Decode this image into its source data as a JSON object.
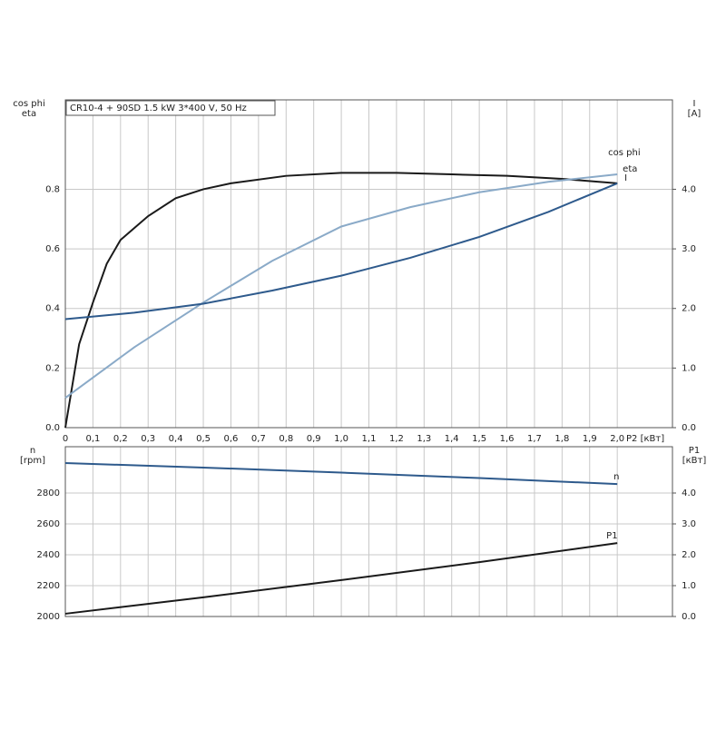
{
  "chart_data": [
    {
      "type": "line",
      "title": "CR10-4 + 90SD   1.5 kW   3*400 V, 50 Hz",
      "ylabel": [
        "cos phi",
        "eta"
      ],
      "y2label": [
        "I",
        "[A]"
      ],
      "xlabel": "P2 [кВт]",
      "xlim": [
        0,
        2.2
      ],
      "ylim": [
        0,
        1.1
      ],
      "y2lim": [
        0,
        5.5
      ],
      "xticks": [
        0,
        {
          "value": 0.1,
          "label": "0,1"
        },
        {
          "value": 0.2,
          "label": "0,2"
        },
        {
          "value": 0.3,
          "label": "0,3"
        },
        {
          "value": 0.4,
          "label": "0,4"
        },
        {
          "value": 0.5,
          "label": "0,5"
        },
        {
          "value": 0.6,
          "label": "0,6"
        },
        {
          "value": 0.7,
          "label": "0,7"
        },
        {
          "value": 0.8,
          "label": "0,8"
        },
        {
          "value": 0.9,
          "label": "0,9"
        },
        {
          "value": 1.0,
          "label": "1,0"
        },
        {
          "value": 1.1,
          "label": "1,1"
        },
        {
          "value": 1.2,
          "label": "1,2"
        },
        {
          "value": 1.3,
          "label": "1,3"
        },
        {
          "value": 1.4,
          "label": "1,4"
        },
        {
          "value": 1.5,
          "label": "1,5"
        },
        {
          "value": 1.6,
          "label": "1,6"
        },
        {
          "value": 1.7,
          "label": "1,7"
        },
        {
          "value": 1.8,
          "label": "1,8"
        },
        {
          "value": 1.9,
          "label": "1,9"
        },
        {
          "value": 2.0,
          "label": "2,0"
        }
      ],
      "yticks": [
        {
          "value": 0,
          "label": "0.0"
        },
        {
          "value": 0.2,
          "label": "0.2"
        },
        {
          "value": 0.4,
          "label": "0.4"
        },
        {
          "value": 0.6,
          "label": "0.6"
        },
        {
          "value": 0.8,
          "label": "0.8"
        }
      ],
      "y2ticks": [
        {
          "value": 0,
          "label": "0.0"
        },
        {
          "value": 1,
          "label": "1.0"
        },
        {
          "value": 2,
          "label": "2.0"
        },
        {
          "value": 3,
          "label": "3.0"
        },
        {
          "value": 4,
          "label": "4.0"
        }
      ],
      "grid": true,
      "series": [
        {
          "name": "eta",
          "color": "#1a1a1a",
          "x": [
            0,
            0.05,
            0.1,
            0.15,
            0.2,
            0.3,
            0.4,
            0.5,
            0.6,
            0.8,
            1.0,
            1.2,
            1.4,
            1.6,
            1.8,
            2.0
          ],
          "values": [
            0,
            0.28,
            0.42,
            0.55,
            0.63,
            0.71,
            0.77,
            0.8,
            0.82,
            0.845,
            0.855,
            0.855,
            0.85,
            0.845,
            0.835,
            0.82
          ]
        },
        {
          "name": "cos phi",
          "color": "#8aaac8",
          "x": [
            0,
            0.25,
            0.5,
            0.75,
            1.0,
            1.25,
            1.5,
            1.75,
            2.0
          ],
          "values": [
            0.1,
            0.27,
            0.42,
            0.56,
            0.675,
            0.74,
            0.79,
            0.825,
            0.85
          ]
        },
        {
          "name": "I",
          "color": "#2e5a8c",
          "axis": "y2",
          "x": [
            0,
            0.25,
            0.5,
            0.75,
            1.0,
            1.25,
            1.5,
            1.75,
            2.0
          ],
          "values": [
            1.82,
            1.93,
            2.08,
            2.3,
            2.55,
            2.85,
            3.2,
            3.62,
            4.1
          ]
        }
      ]
    },
    {
      "type": "line",
      "ylabel": [
        "n",
        "[rpm]"
      ],
      "y2label": [
        "P1",
        "[кВт]"
      ],
      "xlim": [
        0,
        2.2
      ],
      "ylim": [
        2000,
        3100
      ],
      "y2lim": [
        0,
        5.5
      ],
      "yticks": [
        2000,
        2200,
        2400,
        2600,
        2800
      ],
      "y2ticks": [
        {
          "value": 0,
          "label": "0.0"
        },
        {
          "value": 1,
          "label": "1.0"
        },
        {
          "value": 2,
          "label": "2.0"
        },
        {
          "value": 3,
          "label": "3.0"
        },
        {
          "value": 4,
          "label": "4.0"
        }
      ],
      "grid": true,
      "series": [
        {
          "name": "n",
          "color": "#2e5a8c",
          "x": [
            0,
            0.5,
            1.0,
            1.5,
            2.0
          ],
          "values": [
            2994,
            2965,
            2932,
            2897,
            2858
          ]
        },
        {
          "name": "P1",
          "color": "#1a1a1a",
          "axis": "y2",
          "x": [
            0,
            0.5,
            1.0,
            1.5,
            2.0
          ],
          "values": [
            0.09,
            0.62,
            1.18,
            1.76,
            2.38
          ]
        }
      ]
    }
  ]
}
